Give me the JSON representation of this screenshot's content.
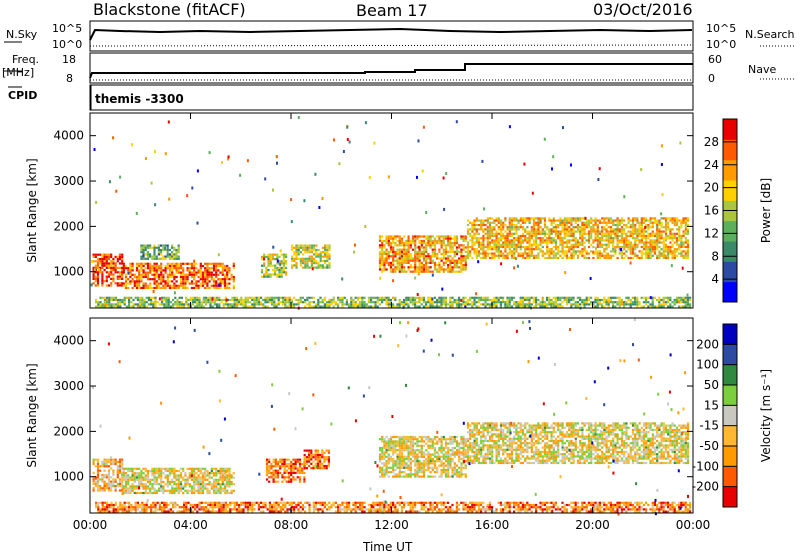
{
  "header": {
    "station": "Blackstone (fitACF)",
    "beam": "Beam 17",
    "date": "03/Oct/2016"
  },
  "strip": {
    "nsky_label": "N.Sky",
    "nsky_hi": "10^5",
    "nsky_lo": "10^0",
    "nsearch_label": "N.Search",
    "nsearch_hi": "10^5",
    "nsearch_lo": "10^0",
    "freq_label": "Freq.",
    "freq_unit": "[MHz]",
    "freq_hi": "18",
    "freq_lo": "8",
    "nave_label": "Nave",
    "nave_hi": "60",
    "nave_lo": "0",
    "cpid_label": "CPID",
    "cpid_value": "themis -3300"
  },
  "chart_data": [
    {
      "type": "heatmap",
      "name": "power",
      "ylabel": "Slant Range [km]",
      "ylim": [
        200,
        4500
      ],
      "yticks": [
        "1000",
        "2000",
        "3000",
        "4000"
      ],
      "xlim": [
        0,
        24
      ],
      "colorbar": {
        "label": "Power [dB]",
        "ticks": [
          "4",
          "8",
          "12",
          "16",
          "20",
          "24",
          "28"
        ],
        "colors": [
          "#0000ff",
          "#2c4aa3",
          "#3a8a6a",
          "#5cb05a",
          "#a9c63c",
          "#ffd000",
          "#ff9a00",
          "#ff5a00",
          "#e80000"
        ]
      },
      "regions": [
        {
          "t0": 0.1,
          "t1": 1.3,
          "r0": 700,
          "r1": 1400,
          "level": 0.85
        },
        {
          "t0": 1.3,
          "t1": 5.7,
          "r0": 650,
          "r1": 1200,
          "level": 0.8
        },
        {
          "t0": 2.0,
          "t1": 3.5,
          "r0": 1300,
          "r1": 1600,
          "level": 0.4
        },
        {
          "t0": 6.8,
          "t1": 7.8,
          "r0": 900,
          "r1": 1400,
          "level": 0.5
        },
        {
          "t0": 8.0,
          "t1": 9.5,
          "r0": 1100,
          "r1": 1600,
          "level": 0.55
        },
        {
          "t0": 11.5,
          "t1": 15.0,
          "r0": 1000,
          "r1": 1800,
          "level": 0.7
        },
        {
          "t0": 15.0,
          "t1": 23.8,
          "r0": 1300,
          "r1": 2200,
          "level": 0.65
        },
        {
          "t0": 0.2,
          "t1": 23.9,
          "r0": 250,
          "r1": 450,
          "level": 0.45
        }
      ]
    },
    {
      "type": "heatmap",
      "name": "velocity",
      "ylabel": "Slant Range [km]",
      "ylim": [
        200,
        4500
      ],
      "yticks": [
        "1000",
        "2000",
        "3000",
        "4000"
      ],
      "xlim": [
        0,
        24
      ],
      "xticks": [
        "00:00",
        "04:00",
        "08:00",
        "12:00",
        "16:00",
        "20:00",
        "00:00"
      ],
      "xlabel": "Time UT",
      "colorbar": {
        "label": "Velocity [m s⁻¹]",
        "ticks": [
          "-200",
          "-100",
          "-50",
          "-15",
          "15",
          "50",
          "100",
          "200"
        ],
        "colors": [
          "#e80000",
          "#ff5a00",
          "#ff9a00",
          "#ffb830",
          "#c8c8c0",
          "#7ccf3c",
          "#2f8a40",
          "#2c4aa3",
          "#0000c0"
        ]
      },
      "regions": [
        {
          "t0": 0.1,
          "t1": 1.3,
          "r0": 700,
          "r1": 1400,
          "level": 0.35
        },
        {
          "t0": 1.3,
          "t1": 5.7,
          "r0": 650,
          "r1": 1200,
          "level": 0.45
        },
        {
          "t0": 7.0,
          "t1": 8.5,
          "r0": 900,
          "r1": 1400,
          "level": 0.2
        },
        {
          "t0": 8.5,
          "t1": 9.5,
          "r0": 1200,
          "r1": 1600,
          "level": 0.15
        },
        {
          "t0": 11.5,
          "t1": 15.0,
          "r0": 1000,
          "r1": 1900,
          "level": 0.45
        },
        {
          "t0": 15.0,
          "t1": 23.8,
          "r0": 1300,
          "r1": 2200,
          "level": 0.45
        },
        {
          "t0": 0.2,
          "t1": 23.9,
          "r0": 250,
          "r1": 450,
          "level": 0.25
        }
      ]
    }
  ]
}
